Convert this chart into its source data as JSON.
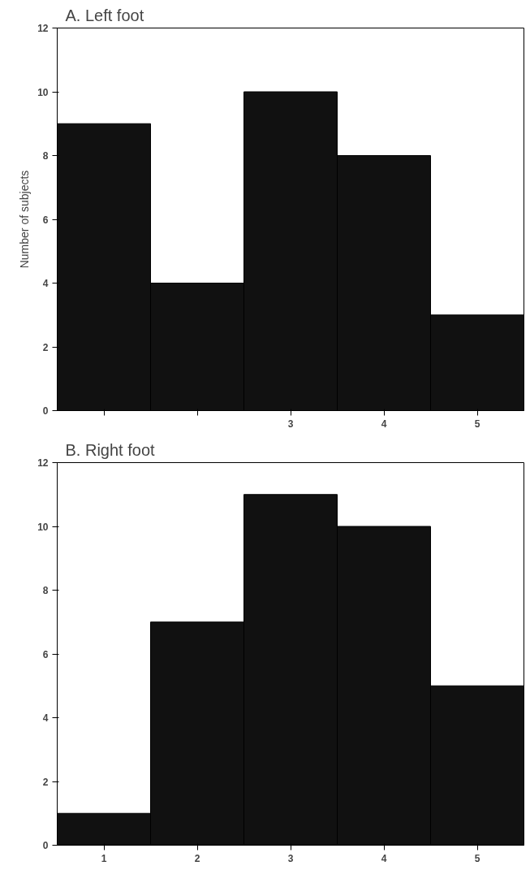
{
  "chart_data": [
    {
      "type": "bar",
      "title": "A. Left foot",
      "ylabel": "Number of subjects",
      "categories": [
        null,
        null,
        "3",
        "4",
        "5"
      ],
      "values": [
        9,
        4,
        10,
        8,
        3
      ],
      "color": "#111111",
      "ylim": [
        0,
        12
      ],
      "yticks": [
        0,
        2,
        4,
        6,
        8,
        10,
        12
      ],
      "grid": false
    },
    {
      "type": "bar",
      "title": "B. Right foot",
      "categories": [
        "1",
        "2",
        "3",
        "4",
        "5"
      ],
      "values": [
        1,
        7,
        11,
        10,
        5
      ],
      "color": "#111111",
      "ylim": [
        0,
        12
      ],
      "yticks": [
        0,
        2,
        4,
        6,
        8,
        10,
        12
      ],
      "grid": false
    }
  ]
}
